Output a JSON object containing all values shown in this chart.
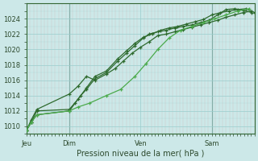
{
  "title": "Pression niveau de la mer( hPa )",
  "background_color": "#cce8e8",
  "grid_major_color": "#99cccc",
  "grid_minor_color": "#ccaaaa",
  "line_color_dark": "#2d6a2d",
  "line_color_light": "#4aaa4a",
  "ylim": [
    1009,
    1026
  ],
  "yticks": [
    1010,
    1012,
    1014,
    1016,
    1018,
    1020,
    1022,
    1024
  ],
  "xlim": [
    0,
    4.0
  ],
  "xlabel_ticks": [
    0.0,
    0.75,
    2.0,
    3.25
  ],
  "xlabel_labels": [
    "Jeu",
    "Dim",
    "Ven",
    "Sam"
  ],
  "vlines": [
    0.75,
    3.25
  ],
  "series": [
    {
      "x": [
        0.0,
        0.08,
        0.18,
        0.75,
        0.85,
        0.95,
        1.05,
        1.2,
        1.4,
        1.6,
        1.75,
        1.9,
        2.05,
        2.15,
        2.3,
        2.45,
        2.6,
        2.75,
        2.9,
        3.05,
        3.2,
        3.35,
        3.5,
        3.65,
        3.8,
        3.95
      ],
      "y": [
        1009.5,
        1010.5,
        1011.5,
        1012.0,
        1013.0,
        1014.0,
        1014.8,
        1016.2,
        1017.0,
        1018.5,
        1019.5,
        1020.5,
        1021.5,
        1022.0,
        1022.3,
        1022.5,
        1022.8,
        1023.0,
        1023.2,
        1023.5,
        1023.8,
        1024.5,
        1025.2,
        1025.3,
        1025.1,
        1024.8
      ],
      "style": "dark"
    },
    {
      "x": [
        0.0,
        0.08,
        0.18,
        0.75,
        0.9,
        1.05,
        1.2,
        1.4,
        1.6,
        1.75,
        1.9,
        2.05,
        2.2,
        2.35,
        2.5,
        2.65,
        2.8,
        2.95,
        3.1,
        3.25,
        3.4,
        3.55,
        3.7,
        3.85,
        4.0
      ],
      "y": [
        1009.5,
        1010.5,
        1012.0,
        1012.2,
        1013.5,
        1015.0,
        1016.5,
        1017.2,
        1018.8,
        1019.8,
        1020.8,
        1021.6,
        1022.0,
        1022.5,
        1022.8,
        1023.0,
        1023.3,
        1023.6,
        1023.9,
        1024.5,
        1024.8,
        1025.0,
        1025.2,
        1025.3,
        1024.8
      ],
      "style": "dark"
    },
    {
      "x": [
        0.0,
        0.08,
        0.18,
        0.75,
        0.9,
        1.05,
        1.2,
        1.4,
        1.55,
        1.7,
        1.85,
        2.0,
        2.15,
        2.3,
        2.45,
        2.6,
        2.75,
        2.9,
        3.05,
        3.2,
        3.35,
        3.5,
        3.65,
        3.8,
        3.95
      ],
      "y": [
        1009.5,
        1010.8,
        1012.2,
        1014.2,
        1015.2,
        1016.5,
        1016.0,
        1016.8,
        1017.5,
        1018.5,
        1019.5,
        1020.3,
        1021.0,
        1021.8,
        1022.0,
        1022.3,
        1022.6,
        1022.9,
        1023.2,
        1023.5,
        1023.8,
        1024.2,
        1024.5,
        1024.8,
        1025.0
      ],
      "style": "dark"
    },
    {
      "x": [
        0.0,
        0.08,
        0.18,
        0.75,
        0.9,
        1.1,
        1.4,
        1.65,
        1.9,
        2.1,
        2.3,
        2.5,
        2.7,
        2.9,
        3.1,
        3.3,
        3.5,
        3.7,
        3.9
      ],
      "y": [
        1009.5,
        1010.5,
        1011.5,
        1012.0,
        1012.5,
        1013.0,
        1014.0,
        1014.8,
        1016.5,
        1018.2,
        1020.0,
        1021.5,
        1022.5,
        1023.0,
        1023.5,
        1024.0,
        1024.5,
        1025.0,
        1025.3
      ],
      "style": "light"
    }
  ]
}
